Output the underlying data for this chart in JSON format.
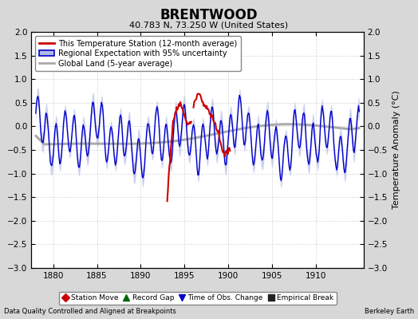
{
  "title": "BRENTWOOD",
  "subtitle": "40.783 N, 73.250 W (United States)",
  "ylabel": "Temperature Anomaly (°C)",
  "xlabel_note": "Data Quality Controlled and Aligned at Breakpoints",
  "credit": "Berkeley Earth",
  "xlim": [
    1877.5,
    1915.5
  ],
  "ylim": [
    -3,
    2
  ],
  "xticks": [
    1880,
    1885,
    1890,
    1895,
    1900,
    1905,
    1910
  ],
  "yticks": [
    -3,
    -2.5,
    -2,
    -1.5,
    -1,
    -0.5,
    0,
    0.5,
    1,
    1.5,
    2
  ],
  "bg_color": "#d8d8d8",
  "plot_bg_color": "#ffffff",
  "blue_line_color": "#0000cc",
  "blue_shade_color": "#b0b8e8",
  "red_line_color": "#cc0000",
  "gray_line_color": "#aaaaaa",
  "legend1_items": [
    "This Temperature Station (12-month average)",
    "Regional Expectation with 95% uncertainty",
    "Global Land (5-year average)"
  ],
  "legend2_items": [
    "Station Move",
    "Record Gap",
    "Time of Obs. Change",
    "Empirical Break"
  ],
  "legend2_colors": [
    "#cc0000",
    "#006600",
    "#0000cc",
    "#222222"
  ],
  "legend2_markers": [
    "D",
    "^",
    "v",
    "s"
  ],
  "seed": 12345
}
